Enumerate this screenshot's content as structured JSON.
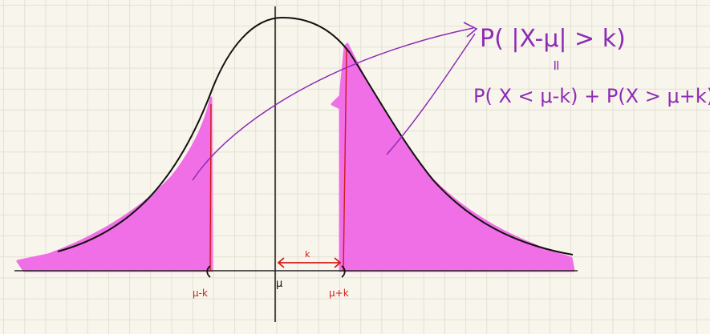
{
  "formula": {
    "top": "P( |X-μ| > k)",
    "equals": "=",
    "bottom": "P( X < μ-k) + P(X > μ+k)."
  },
  "axis_labels": {
    "left_tail_bound": "μ-k",
    "mean": "μ",
    "right_tail_bound": "μ+k",
    "distance": "k"
  },
  "colors": {
    "shade": "#f06fe6",
    "curve": "#111111",
    "annotation": "#8e2bb6",
    "marker": "#d11a1a"
  }
}
